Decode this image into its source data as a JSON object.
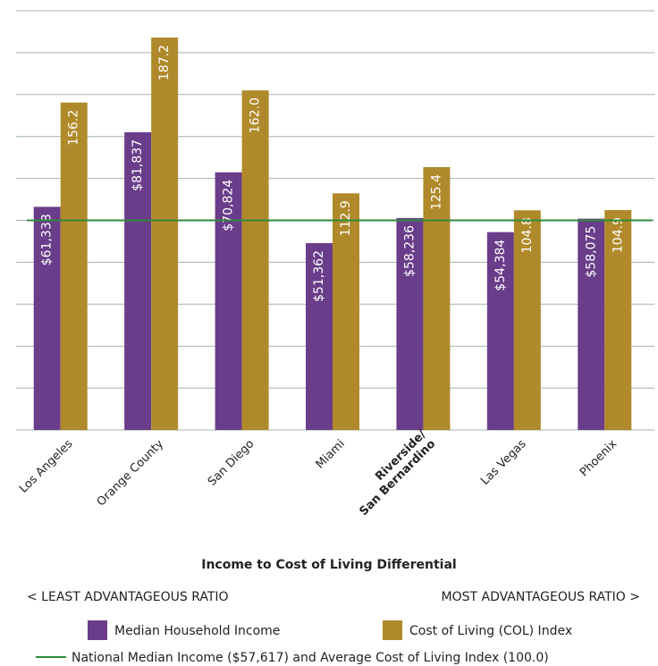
{
  "chart_data": {
    "type": "bar",
    "title": "Income to Cost of Living Differential",
    "annotations": {
      "left": "< LEAST ADVANTAGEOUS RATIO",
      "right": "MOST ADVANTAGEOUS RATIO >"
    },
    "categories": [
      "Los Angeles",
      "Orange County",
      "San Diego",
      "Miami",
      "Riverside/\nSan Bernardino",
      "Las Vegas",
      "Phoenix"
    ],
    "bold_category_index": 4,
    "series": [
      {
        "name": "Median Household Income",
        "color": "#6a3d8a",
        "axis": "y2",
        "values": [
          61338,
          81837,
          70824,
          51362,
          58236,
          54384,
          58075
        ],
        "value_labels": [
          "$61,338",
          "$81,837",
          "$70,824",
          "$51,362",
          "$58,236",
          "$54,384",
          "$58,075"
        ]
      },
      {
        "name": "Cost of Living (COL) Index",
        "color": "#b08a2a",
        "values": [
          156.2,
          187.2,
          162.0,
          112.9,
          125.4,
          104.8,
          104.9
        ],
        "value_labels": [
          "156.2",
          "187.2",
          "162.0",
          "112.9",
          "125.4",
          "104.8",
          "104.9"
        ]
      }
    ],
    "ylim": [
      0,
      200
    ],
    "yticks": [
      0,
      20,
      40,
      60,
      80,
      100,
      120,
      140,
      160,
      180,
      200
    ],
    "y2lim": [
      0,
      115234
    ],
    "grid": true,
    "reference_line": {
      "value": 100,
      "color": "#2e8b3a",
      "label": "National Median Income ($57,617) and Average Cost of Living Index (100.0)"
    }
  }
}
